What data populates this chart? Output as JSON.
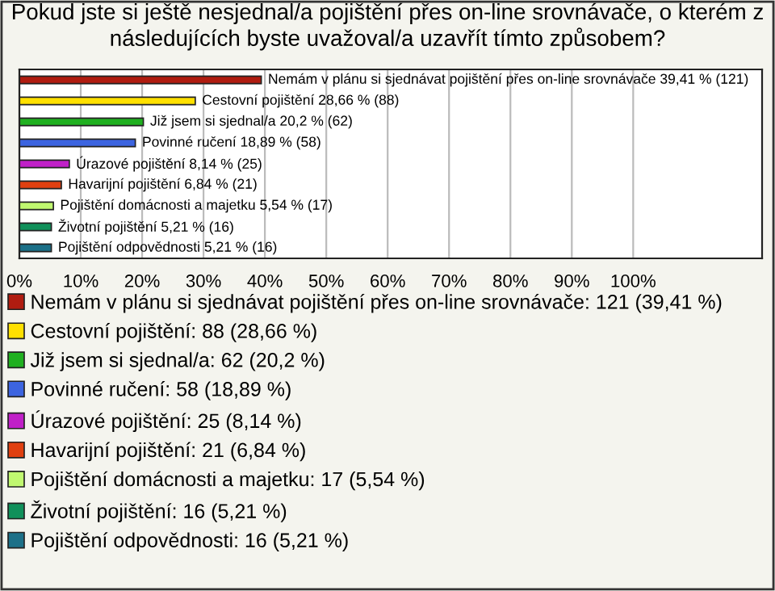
{
  "chart_data": {
    "type": "bar",
    "orientation": "horizontal",
    "title": "Pokud jste si ještě nesjednal/a pojištění přes on-line srovnávače, o kterém z následujících byste uvažoval/a uzavřít tímto způsobem?",
    "categories": [
      null,
      null,
      null,
      null,
      null,
      null,
      null,
      null,
      null
    ],
    "series": [
      {
        "name": "Nemám v plánu si sjednávat pojištění přes on-line srovnávače: 121 (39,41 %)",
        "color": "#b01c10",
        "values": [
          39.41,
          null,
          null,
          null,
          null,
          null,
          null,
          null,
          null
        ],
        "value_labels": [
          "Nemám v plánu si sjednávat pojištění přes on-line srovnávače 39,41 % (121)",
          null,
          null,
          null,
          null,
          null,
          null,
          null,
          null
        ]
      },
      {
        "name": "Cestovní pojištění: 88 (28,66 %)",
        "color": "#ffe000",
        "values": [
          null,
          28.66,
          null,
          null,
          null,
          null,
          null,
          null,
          null
        ],
        "value_labels": [
          null,
          "Cestovní pojištění 28,66 % (88)",
          null,
          null,
          null,
          null,
          null,
          null,
          null
        ]
      },
      {
        "name": "Již jsem si sjednal/a: 62 (20,2 %)",
        "color": "#20b020",
        "values": [
          null,
          null,
          20.2,
          null,
          null,
          null,
          null,
          null,
          null
        ],
        "value_labels": [
          null,
          null,
          "Již jsem si sjednal/a 20,2 % (62)",
          null,
          null,
          null,
          null,
          null,
          null
        ]
      },
      {
        "name": "Povinné ručení: 58 (18,89 %)",
        "color": "#3c64e0",
        "values": [
          null,
          null,
          null,
          18.89,
          null,
          null,
          null,
          null,
          null
        ],
        "value_labels": [
          null,
          null,
          null,
          "Povinné ručení 18,89 % (58)",
          null,
          null,
          null,
          null,
          null
        ]
      },
      {
        "name": "Úrazové pojištění: 25 (8,14 %)",
        "color": "#c020c8",
        "values": [
          null,
          null,
          null,
          null,
          8.14,
          null,
          null,
          null,
          null
        ],
        "value_labels": [
          null,
          null,
          null,
          null,
          "Úrazové pojištění 8,14 % (25)",
          null,
          null,
          null,
          null
        ]
      },
      {
        "name": "Havarijní pojištění: 21 (6,84 %)",
        "color": "#e04010",
        "values": [
          null,
          null,
          null,
          null,
          null,
          6.84,
          null,
          null,
          null
        ],
        "value_labels": [
          null,
          null,
          null,
          null,
          null,
          "Havarijní pojištění 6,84 % (21)",
          null,
          null,
          null
        ]
      },
      {
        "name": "Pojištění domácnosti a majetku: 17 (5,54 %)",
        "color": "#c0f870",
        "values": [
          null,
          null,
          null,
          null,
          null,
          null,
          5.54,
          null,
          null
        ],
        "value_labels": [
          null,
          null,
          null,
          null,
          null,
          null,
          "Pojištění domácnosti a majetku 5,54 % (17)",
          null,
          null
        ]
      },
      {
        "name": "Životní pojištění: 16 (5,21 %)",
        "color": "#10905a",
        "values": [
          null,
          null,
          null,
          null,
          null,
          null,
          null,
          5.21,
          null
        ],
        "value_labels": [
          null,
          null,
          null,
          null,
          null,
          null,
          null,
          "Životní pojištění 5,21 % (16)",
          null
        ]
      },
      {
        "name": "Pojištění odpovědnosti: 16 (5,21 %)",
        "color": "#1c7088",
        "values": [
          null,
          null,
          null,
          null,
          null,
          null,
          null,
          null,
          5.21
        ],
        "value_labels": [
          null,
          null,
          null,
          null,
          null,
          null,
          null,
          null,
          "Pojištění odpovědnosti 5,21 % (16)"
        ]
      }
    ],
    "xlim": [
      0,
      121
    ],
    "xticks": [
      {
        "value": 0,
        "label": "0%"
      },
      {
        "value": 10,
        "label": "10%"
      },
      {
        "value": 20,
        "label": "20%"
      },
      {
        "value": 30,
        "label": "30%"
      },
      {
        "value": 40,
        "label": "40%"
      },
      {
        "value": 50,
        "label": "50%"
      },
      {
        "value": 60,
        "label": "60%"
      },
      {
        "value": 70,
        "label": "70%"
      },
      {
        "value": 80,
        "label": "80%"
      },
      {
        "value": 90,
        "label": "90%"
      },
      {
        "value": 100,
        "label": "100%"
      }
    ],
    "grid": "x",
    "legend": "bottom"
  }
}
